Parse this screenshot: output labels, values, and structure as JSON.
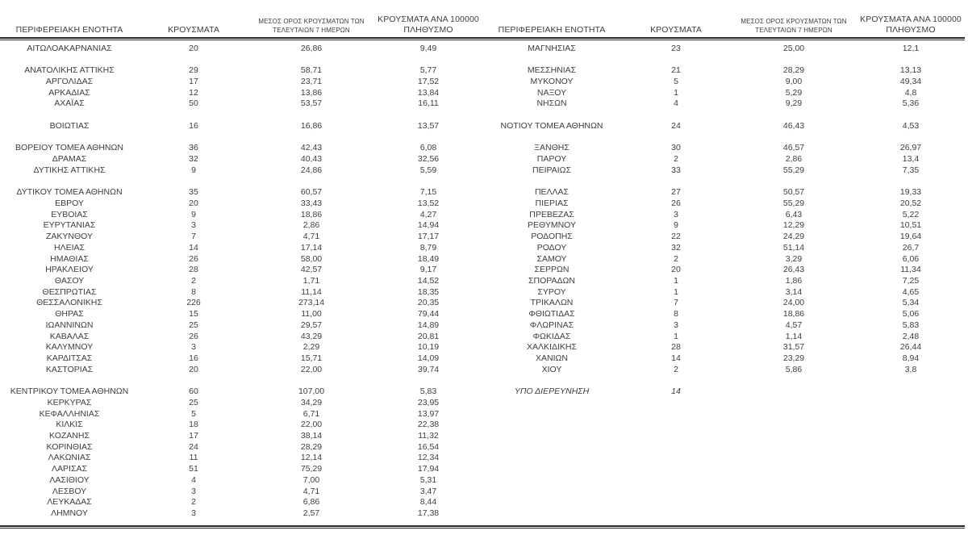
{
  "colors": {
    "background": "#ffffff",
    "text": "#3d3d3d",
    "rule": "#262626"
  },
  "header": {
    "col_region": "ΠΕΡΙΦΕΡΕΙΑΚΗ ΕΝΟΤΗΤΑ",
    "col_cases": "ΚΡΟΥΣΜΑΤΑ",
    "col_avg7_line1": "ΜΕΣΟΣ ΟΡΟΣ ΚΡΟΥΣΜΑΤΩΝ ΤΩΝ",
    "col_avg7_line2": "ΤΕΛΕΥΤΑΙΩΝ 7 ΗΜΕΡΩΝ",
    "col_per100k_line1": "ΚΡΟΥΣΜΑΤΑ ΑΝΑ 100000",
    "col_per100k_line2": "ΠΛΗΘΥΣΜΟ"
  },
  "tables": [
    {
      "id": "left",
      "rows": [
        {
          "region": "ΑΙΤΩΛΟΑΚΑΡΝΑΝΙΑΣ",
          "cases": "20",
          "avg7": "26,86",
          "per100k": "9,49"
        },
        {
          "region": "",
          "cases": "",
          "avg7": "",
          "per100k": ""
        },
        {
          "region": "ΑΝΑΤΟΛΙΚΗΣ ΑΤΤΙΚΗΣ",
          "cases": "29",
          "avg7": "58,71",
          "per100k": "5,77"
        },
        {
          "region": "ΑΡΓΟΛΙΔΑΣ",
          "cases": "17",
          "avg7": "23,71",
          "per100k": "17,52"
        },
        {
          "region": "ΑΡΚΑΔΙΑΣ",
          "cases": "12",
          "avg7": "13,86",
          "per100k": "13,84"
        },
        {
          "region": "ΑΧΑΪΑΣ",
          "cases": "50",
          "avg7": "53,57",
          "per100k": "16,11"
        },
        {
          "region": "",
          "cases": "",
          "avg7": "",
          "per100k": ""
        },
        {
          "region": "ΒΟΙΩΤΙΑΣ",
          "cases": "16",
          "avg7": "16,86",
          "per100k": "13,57"
        },
        {
          "region": "",
          "cases": "",
          "avg7": "",
          "per100k": ""
        },
        {
          "region": "ΒΟΡΕΙΟΥ ΤΟΜΕΑ ΑΘΗΝΩΝ",
          "cases": "36",
          "avg7": "42,43",
          "per100k": "6,08"
        },
        {
          "region": "ΔΡΑΜΑΣ",
          "cases": "32",
          "avg7": "40,43",
          "per100k": "32,56"
        },
        {
          "region": "ΔΥΤΙΚΗΣ ΑΤΤΙΚΗΣ",
          "cases": "9",
          "avg7": "24,86",
          "per100k": "5,59"
        },
        {
          "region": "",
          "cases": "",
          "avg7": "",
          "per100k": ""
        },
        {
          "region": "ΔΥΤΙΚΟΥ ΤΟΜΕΑ ΑΘΗΝΩΝ",
          "cases": "35",
          "avg7": "60,57",
          "per100k": "7,15"
        },
        {
          "region": "ΕΒΡΟΥ",
          "cases": "20",
          "avg7": "33,43",
          "per100k": "13,52"
        },
        {
          "region": "ΕΥΒΟΙΑΣ",
          "cases": "9",
          "avg7": "18,86",
          "per100k": "4,27"
        },
        {
          "region": "ΕΥΡΥΤΑΝΙΑΣ",
          "cases": "3",
          "avg7": "2,86",
          "per100k": "14,94"
        },
        {
          "region": "ΖΑΚΥΝΘΟΥ",
          "cases": "7",
          "avg7": "4,71",
          "per100k": "17,17"
        },
        {
          "region": "ΗΛΕΙΑΣ",
          "cases": "14",
          "avg7": "17,14",
          "per100k": "8,79"
        },
        {
          "region": "ΗΜΑΘΙΑΣ",
          "cases": "26",
          "avg7": "58,00",
          "per100k": "18,49"
        },
        {
          "region": "ΗΡΑΚΛΕΙΟΥ",
          "cases": "28",
          "avg7": "42,57",
          "per100k": "9,17"
        },
        {
          "region": "ΘΑΣΟΥ",
          "cases": "2",
          "avg7": "1,71",
          "per100k": "14,52"
        },
        {
          "region": "ΘΕΣΠΡΩΤΙΑΣ",
          "cases": "8",
          "avg7": "11,14",
          "per100k": "18,35"
        },
        {
          "region": "ΘΕΣΣΑΛΟΝΙΚΗΣ",
          "cases": "226",
          "avg7": "273,14",
          "per100k": "20,35"
        },
        {
          "region": "ΘΗΡΑΣ",
          "cases": "15",
          "avg7": "11,00",
          "per100k": "79,44"
        },
        {
          "region": "ΙΩΑΝΝΙΝΩΝ",
          "cases": "25",
          "avg7": "29,57",
          "per100k": "14,89"
        },
        {
          "region": "ΚΑΒΑΛΑΣ",
          "cases": "26",
          "avg7": "43,29",
          "per100k": "20,81"
        },
        {
          "region": "ΚΑΛΥΜΝΟΥ",
          "cases": "3",
          "avg7": "2,29",
          "per100k": "10,19"
        },
        {
          "region": "ΚΑΡΔΙΤΣΑΣ",
          "cases": "16",
          "avg7": "15,71",
          "per100k": "14,09"
        },
        {
          "region": "ΚΑΣΤΟΡΙΑΣ",
          "cases": "20",
          "avg7": "22,00",
          "per100k": "39,74"
        },
        {
          "region": "",
          "cases": "",
          "avg7": "",
          "per100k": ""
        },
        {
          "region": "ΚΕΝΤΡΙΚΟΥ ΤΟΜΕΑ ΑΘΗΝΩΝ",
          "cases": "60",
          "avg7": "107,00",
          "per100k": "5,83"
        },
        {
          "region": "ΚΕΡΚΥΡΑΣ",
          "cases": "25",
          "avg7": "34,29",
          "per100k": "23,95"
        },
        {
          "region": "ΚΕΦΑΛΛΗΝΙΑΣ",
          "cases": "5",
          "avg7": "6,71",
          "per100k": "13,97"
        },
        {
          "region": "ΚΙΛΚΙΣ",
          "cases": "18",
          "avg7": "22,00",
          "per100k": "22,38"
        },
        {
          "region": "ΚΟΖΑΝΗΣ",
          "cases": "17",
          "avg7": "38,14",
          "per100k": "11,32"
        },
        {
          "region": "ΚΟΡΙΝΘΙΑΣ",
          "cases": "24",
          "avg7": "28,29",
          "per100k": "16,54"
        },
        {
          "region": "ΛΑΚΩΝΙΑΣ",
          "cases": "11",
          "avg7": "12,14",
          "per100k": "12,34"
        },
        {
          "region": "ΛΑΡΙΣΑΣ",
          "cases": "51",
          "avg7": "75,29",
          "per100k": "17,94"
        },
        {
          "region": "ΛΑΣΙΘΙΟΥ",
          "cases": "4",
          "avg7": "7,00",
          "per100k": "5,31"
        },
        {
          "region": "ΛΕΣΒΟΥ",
          "cases": "3",
          "avg7": "4,71",
          "per100k": "3,47"
        },
        {
          "region": "ΛΕΥΚΑΔΑΣ",
          "cases": "2",
          "avg7": "6,86",
          "per100k": "8,44"
        },
        {
          "region": "ΛΗΜΝΟΥ",
          "cases": "3",
          "avg7": "2,57",
          "per100k": "17,38"
        }
      ]
    },
    {
      "id": "right",
      "rows": [
        {
          "region": "ΜΑΓΝΗΣΙΑΣ",
          "cases": "23",
          "avg7": "25,00",
          "per100k": "12,1"
        },
        {
          "region": "",
          "cases": "",
          "avg7": "",
          "per100k": ""
        },
        {
          "region": "ΜΕΣΣΗΝΙΑΣ",
          "cases": "21",
          "avg7": "28,29",
          "per100k": "13,13"
        },
        {
          "region": "ΜΥΚΟΝΟΥ",
          "cases": "5",
          "avg7": "9,00",
          "per100k": "49,34"
        },
        {
          "region": "ΝΑΞΟΥ",
          "cases": "1",
          "avg7": "5,29",
          "per100k": "4,8"
        },
        {
          "region": "ΝΗΣΩΝ",
          "cases": "4",
          "avg7": "9,29",
          "per100k": "5,36"
        },
        {
          "region": "",
          "cases": "",
          "avg7": "",
          "per100k": ""
        },
        {
          "region": "ΝΟΤΙΟΥ ΤΟΜΕΑ ΑΘΗΝΩΝ",
          "cases": "24",
          "avg7": "46,43",
          "per100k": "4,53"
        },
        {
          "region": "",
          "cases": "",
          "avg7": "",
          "per100k": ""
        },
        {
          "region": "ΞΑΝΘΗΣ",
          "cases": "30",
          "avg7": "46,57",
          "per100k": "26,97"
        },
        {
          "region": "ΠΑΡΟΥ",
          "cases": "2",
          "avg7": "2,86",
          "per100k": "13,4"
        },
        {
          "region": "ΠΕΙΡΑΙΩΣ",
          "cases": "33",
          "avg7": "55,29",
          "per100k": "7,35"
        },
        {
          "region": "",
          "cases": "",
          "avg7": "",
          "per100k": ""
        },
        {
          "region": "ΠΕΛΛΑΣ",
          "cases": "27",
          "avg7": "50,57",
          "per100k": "19,33"
        },
        {
          "region": "ΠΙΕΡΙΑΣ",
          "cases": "26",
          "avg7": "55,29",
          "per100k": "20,52"
        },
        {
          "region": "ΠΡΕΒΕΖΑΣ",
          "cases": "3",
          "avg7": "6,43",
          "per100k": "5,22"
        },
        {
          "region": "ΡΕΘΥΜΝΟΥ",
          "cases": "9",
          "avg7": "12,29",
          "per100k": "10,51"
        },
        {
          "region": "ΡΟΔΟΠΗΣ",
          "cases": "22",
          "avg7": "24,29",
          "per100k": "19,64"
        },
        {
          "region": "ΡΟΔΟΥ",
          "cases": "32",
          "avg7": "51,14",
          "per100k": "26,7"
        },
        {
          "region": "ΣΑΜΟΥ",
          "cases": "2",
          "avg7": "3,29",
          "per100k": "6,06"
        },
        {
          "region": "ΣΕΡΡΩΝ",
          "cases": "20",
          "avg7": "26,43",
          "per100k": "11,34"
        },
        {
          "region": "ΣΠΟΡΑΔΩΝ",
          "cases": "1",
          "avg7": "1,86",
          "per100k": "7,25"
        },
        {
          "region": "ΣΥΡΟΥ",
          "cases": "1",
          "avg7": "3,14",
          "per100k": "4,65"
        },
        {
          "region": "ΤΡΙΚΑΛΩΝ",
          "cases": "7",
          "avg7": "24,00",
          "per100k": "5,34"
        },
        {
          "region": "ΦΘΙΩΤΙΔΑΣ",
          "cases": "8",
          "avg7": "18,86",
          "per100k": "5,06"
        },
        {
          "region": "ΦΛΩΡΙΝΑΣ",
          "cases": "3",
          "avg7": "4,57",
          "per100k": "5,83"
        },
        {
          "region": "ΦΩΚΙΔΑΣ",
          "cases": "1",
          "avg7": "1,14",
          "per100k": "2,48"
        },
        {
          "region": "ΧΑΛΚΙΔΙΚΗΣ",
          "cases": "28",
          "avg7": "31,57",
          "per100k": "26,44"
        },
        {
          "region": "ΧΑΝΙΩΝ",
          "cases": "14",
          "avg7": "23,29",
          "per100k": "8,94"
        },
        {
          "region": "ΧΙΟΥ",
          "cases": "2",
          "avg7": "5,86",
          "per100k": "3,8"
        },
        {
          "region": "",
          "cases": "",
          "avg7": "",
          "per100k": ""
        },
        {
          "region": "ΥΠΟ ΔΙΕΡΕΥΝΗΣΗ",
          "cases": "14",
          "avg7": "",
          "per100k": "",
          "italic": true
        }
      ]
    }
  ]
}
